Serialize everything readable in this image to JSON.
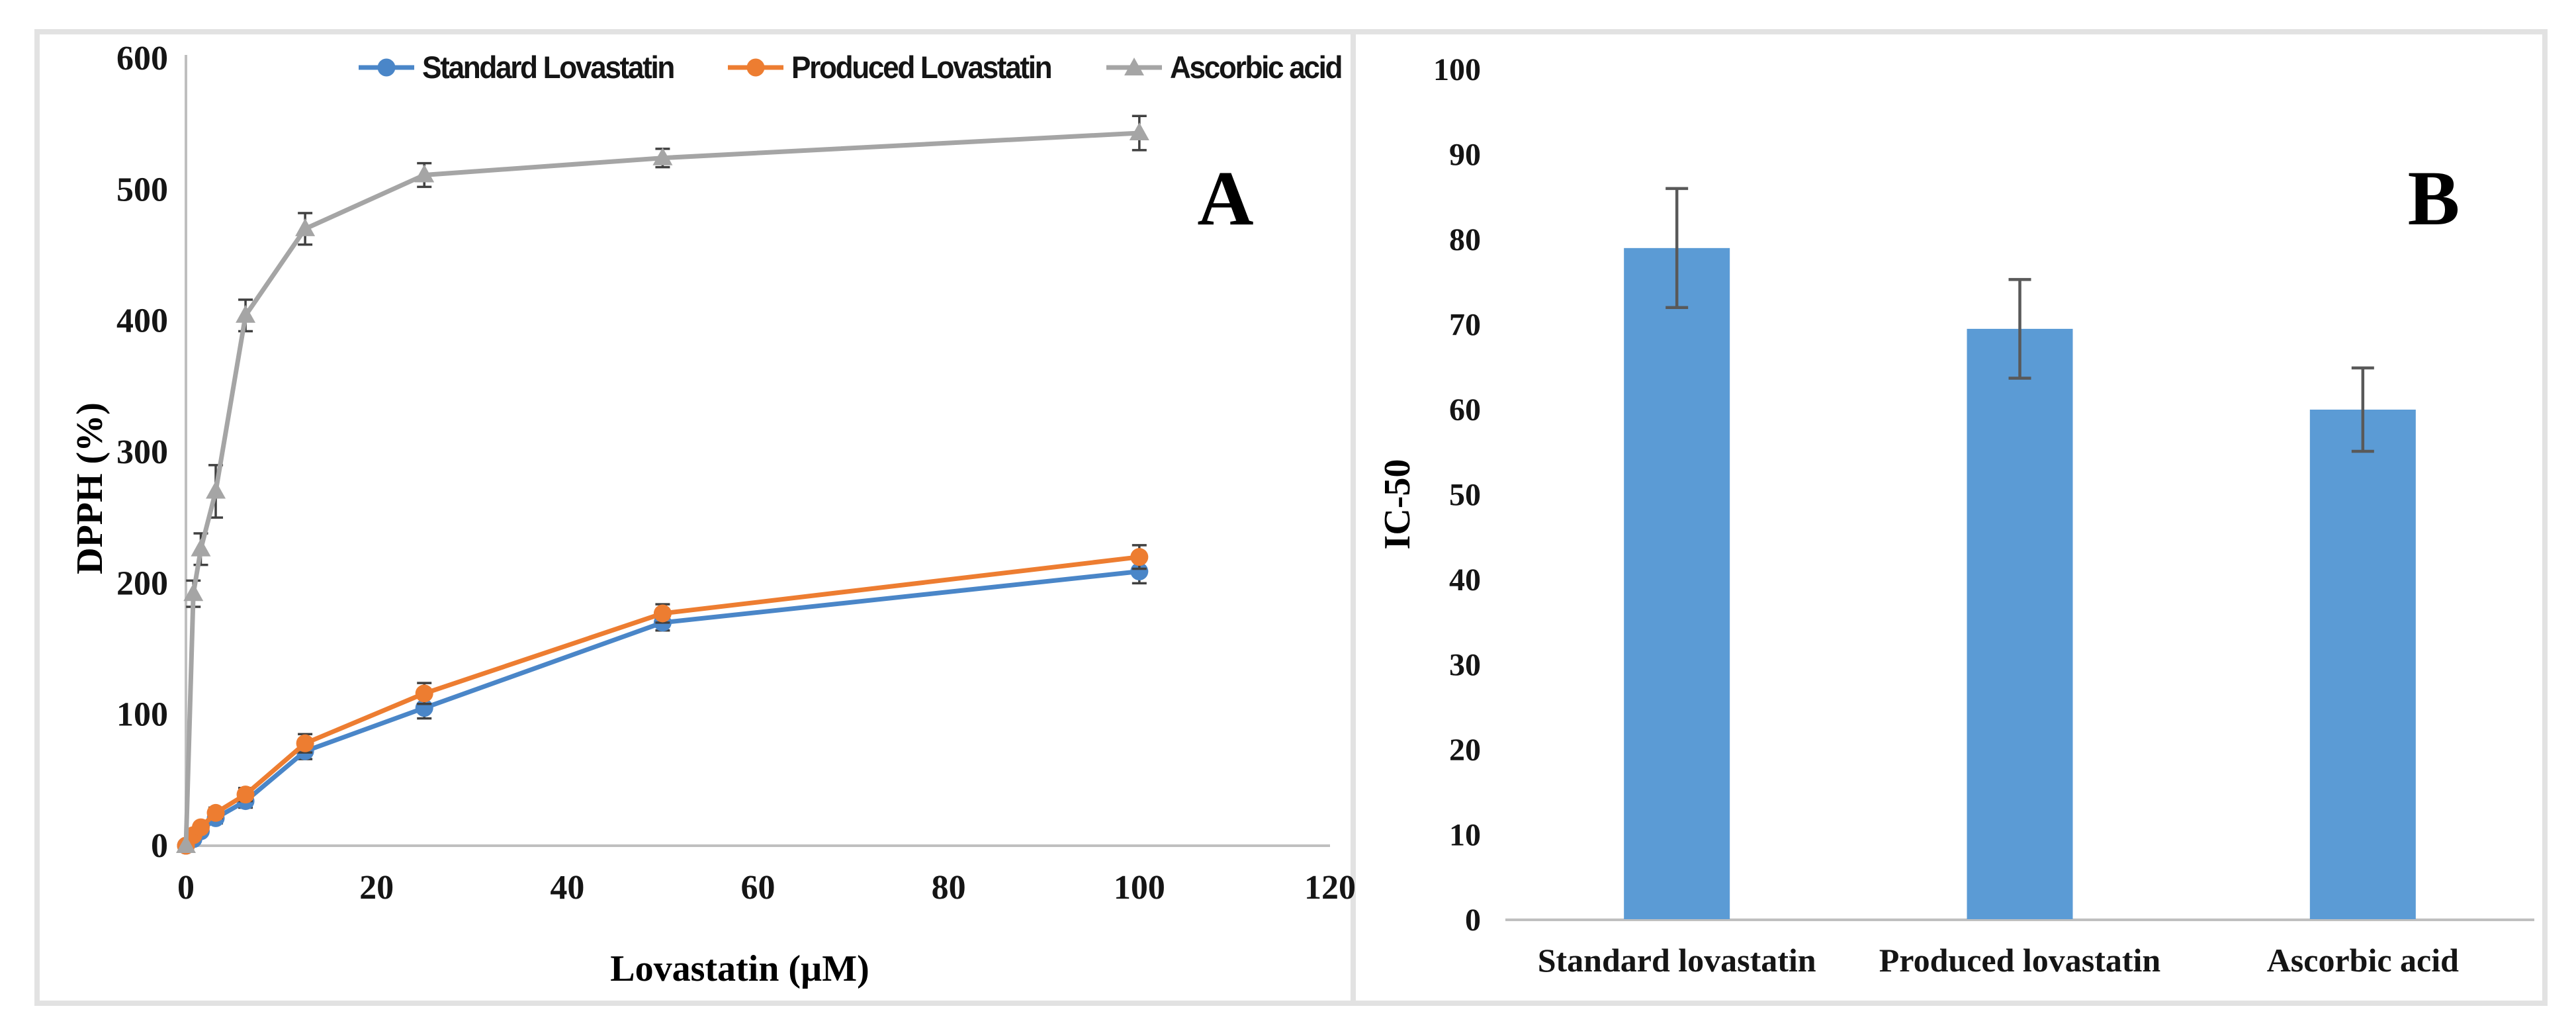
{
  "figure": {
    "panel_a_label": "A",
    "panel_b_label": "B",
    "border_color": "#e2e2e2",
    "axis_color": "#bfbfbf",
    "error_bar_color_a": "#404040",
    "error_bar_color_b": "#595959",
    "text_color": "#151515"
  },
  "chart_data": [
    {
      "id": "dpph-line-chart",
      "type": "line",
      "xlabel": "Lovastatin (µM)",
      "ylabel": "DPPH (%)",
      "xlim": [
        0,
        120
      ],
      "ylim": [
        0,
        600
      ],
      "xticks": [
        0,
        20,
        40,
        60,
        80,
        100,
        120
      ],
      "yticks": [
        0,
        100,
        200,
        300,
        400,
        500,
        600
      ],
      "x": [
        0,
        0.78,
        1.56,
        3.125,
        6.25,
        12.5,
        25,
        50,
        100
      ],
      "legend_position": "top",
      "grid": false,
      "series": [
        {
          "name": "Standard Lovastatin",
          "color": "#4a86c8",
          "marker": "circle",
          "values": [
            0,
            5,
            11,
            21,
            34,
            72,
            105,
            170,
            209
          ],
          "errors": [
            0,
            3,
            3,
            4,
            5,
            6,
            8,
            6,
            9
          ]
        },
        {
          "name": "Produced Lovastatin",
          "color": "#ed7d31",
          "marker": "circle",
          "values": [
            0,
            8,
            14,
            25,
            39,
            78,
            116,
            177,
            220
          ],
          "errors": [
            0,
            3,
            3,
            4,
            5,
            7,
            8,
            7,
            9
          ]
        },
        {
          "name": "Ascorbic acid",
          "color": "#a5a5a5",
          "marker": "triangle",
          "values": [
            0,
            192,
            226,
            270,
            404,
            470,
            511,
            524,
            543
          ],
          "errors": [
            0,
            10,
            12,
            20,
            12,
            12,
            9,
            7,
            13
          ]
        }
      ]
    },
    {
      "id": "ic50-bar-chart",
      "type": "bar",
      "ylabel": "IC-50",
      "ylim": [
        0,
        100
      ],
      "yticks": [
        0,
        10,
        20,
        30,
        40,
        50,
        60,
        70,
        80,
        90,
        100
      ],
      "categories": [
        "Standard lovastatin",
        "Produced lovastatin",
        "Ascorbic acid"
      ],
      "values": [
        79,
        69.5,
        60
      ],
      "errors": [
        7,
        5.8,
        4.9
      ],
      "bar_color": "#5b9bd5",
      "grid": false
    }
  ]
}
